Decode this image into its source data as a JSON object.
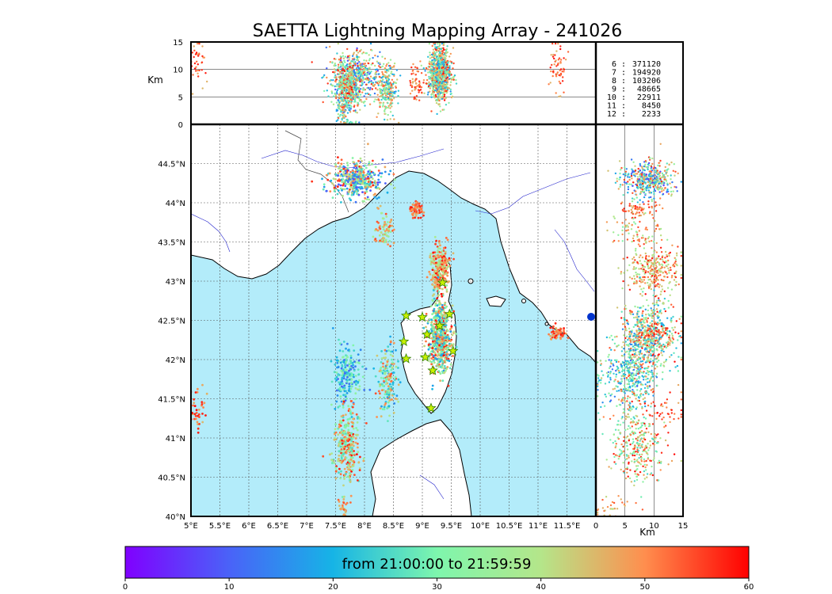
{
  "chart_data": {
    "type": "scatter",
    "title": "SAETTA Lightning Mapping Array - 241026",
    "colorbar_label": "from 21:00:00 to 21:59:59",
    "colormap": "rainbow",
    "colorbar_ticks": [
      "0",
      "10",
      "20",
      "30",
      "40",
      "50",
      "60"
    ],
    "colorbar_range": [
      0,
      60
    ],
    "map": {
      "lon_range": [
        5,
        12
      ],
      "lat_range": [
        40,
        45
      ],
      "lon_ticks": [
        "5°E",
        "5.5°E",
        "6°E",
        "6.5°E",
        "7°E",
        "7.5°E",
        "8°E",
        "8.5°E",
        "9°E",
        "9.5°E",
        "10°E",
        "10.5°E",
        "11°E",
        "11.5°E"
      ],
      "lat_ticks": [
        "40°N",
        "40.5°N",
        "41°N",
        "41.5°N",
        "42°N",
        "42.5°N",
        "43°N",
        "43.5°N",
        "44°N",
        "44.5°N"
      ],
      "grid": true,
      "sea_color": "#b3ecfa"
    },
    "altitude_panel": {
      "ylabel": "Km",
      "ylim": [
        0,
        15
      ],
      "y_ticks": [
        "0",
        "5",
        "10",
        "15"
      ]
    },
    "side_panel": {
      "xlabel": "Km",
      "xlim": [
        0,
        15
      ],
      "x_ticks": [
        "0",
        "5",
        "10",
        "15"
      ]
    },
    "station_counts": [
      {
        "label": "6 :",
        "value": "371120",
        "color": "#000000"
      },
      {
        "label": "7 :",
        "value": "194920",
        "color": "#ff0000"
      },
      {
        "label": "8 :",
        "value": "103206",
        "color": "#000000"
      },
      {
        "label": "9 :",
        "value": "48665",
        "color": "#000000"
      },
      {
        "label": "10 :",
        "value": "22911",
        "color": "#000000"
      },
      {
        "label": "11 :",
        "value": "8450",
        "color": "#000000"
      },
      {
        "label": "12 :",
        "value": "2233",
        "color": "#000000"
      }
    ],
    "lightning_clusters": [
      {
        "lon": 7.85,
        "lat": 44.3,
        "lon_spread": 0.22,
        "lat_spread": 0.12,
        "alt": 9,
        "time_start": 5,
        "time_end": 58,
        "n": 450
      },
      {
        "lon": 8.9,
        "lat": 43.9,
        "lon_spread": 0.06,
        "lat_spread": 0.05,
        "alt": 8,
        "time_start": 45,
        "time_end": 58,
        "n": 60
      },
      {
        "lon": 8.33,
        "lat": 43.65,
        "lon_spread": 0.07,
        "lat_spread": 0.12,
        "alt": 7,
        "time_start": 30,
        "time_end": 55,
        "n": 80
      },
      {
        "lon": 9.3,
        "lat": 43.15,
        "lon_spread": 0.08,
        "lat_spread": 0.15,
        "alt": 10,
        "time_start": 35,
        "time_end": 60,
        "n": 300
      },
      {
        "lon": 9.3,
        "lat": 42.3,
        "lon_spread": 0.1,
        "lat_spread": 0.22,
        "alt": 9,
        "time_start": 15,
        "time_end": 60,
        "n": 650
      },
      {
        "lon": 11.35,
        "lat": 42.35,
        "lon_spread": 0.07,
        "lat_spread": 0.04,
        "alt": 10,
        "time_start": 45,
        "time_end": 60,
        "n": 60
      },
      {
        "lon": 7.7,
        "lat": 41.8,
        "lon_spread": 0.12,
        "lat_spread": 0.2,
        "alt": 5,
        "time_start": 10,
        "time_end": 35,
        "n": 220
      },
      {
        "lon": 8.4,
        "lat": 41.75,
        "lon_spread": 0.08,
        "lat_spread": 0.2,
        "alt": 6,
        "time_start": 15,
        "time_end": 55,
        "n": 180
      },
      {
        "lon": 7.7,
        "lat": 40.9,
        "lon_spread": 0.12,
        "lat_spread": 0.25,
        "alt": 7,
        "time_start": 25,
        "time_end": 60,
        "n": 320
      },
      {
        "lon": 5.1,
        "lat": 41.35,
        "lon_spread": 0.1,
        "lat_spread": 0.12,
        "alt": 11,
        "time_start": 45,
        "time_end": 60,
        "n": 50
      },
      {
        "lon": 7.65,
        "lat": 40.1,
        "lon_spread": 0.05,
        "lat_spread": 0.08,
        "alt": 3,
        "time_start": 40,
        "time_end": 55,
        "n": 30
      }
    ],
    "stations": [
      {
        "lon": 9.35,
        "lat": 42.98
      },
      {
        "lon": 8.72,
        "lat": 42.56
      },
      {
        "lon": 9.0,
        "lat": 42.54
      },
      {
        "lon": 9.47,
        "lat": 42.58
      },
      {
        "lon": 9.3,
        "lat": 42.43
      },
      {
        "lon": 9.08,
        "lat": 42.32
      },
      {
        "lon": 8.68,
        "lat": 42.23
      },
      {
        "lon": 9.53,
        "lat": 42.11
      },
      {
        "lon": 8.72,
        "lat": 42.01
      },
      {
        "lon": 9.05,
        "lat": 42.03
      },
      {
        "lon": 9.18,
        "lat": 41.86
      },
      {
        "lon": 9.15,
        "lat": 41.38
      }
    ]
  }
}
